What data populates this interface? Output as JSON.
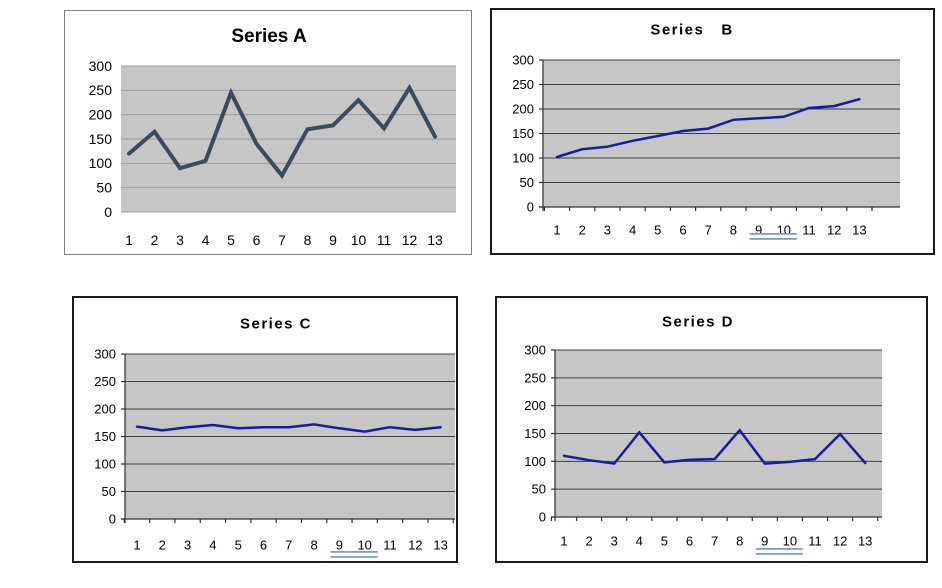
{
  "page": {
    "background": "#ffffff",
    "description": "Four line charts in a 2x2 grid"
  },
  "chart_data": [
    {
      "type": "line",
      "title": "Series A",
      "categories": [
        "1",
        "2",
        "3",
        "4",
        "5",
        "6",
        "7",
        "8",
        "9",
        "10",
        "11",
        "12",
        "13"
      ],
      "values": [
        120,
        165,
        90,
        105,
        245,
        140,
        75,
        170,
        178,
        230,
        172,
        255,
        155
      ],
      "xlabel": "",
      "ylabel": "",
      "ylim": [
        0,
        300
      ],
      "yticks": [
        0,
        50,
        100,
        150,
        200,
        250,
        300
      ],
      "grid": true,
      "legend": false,
      "style": {
        "line_color": "#3d4a5c",
        "line_width": 4,
        "plot_bg": "#c6c6c6",
        "grid_color": "#9e9e9e",
        "axis_color": "#9e9e9e",
        "show_axis_lines": false,
        "underline_9_10": false,
        "underline_color": "#7d9bd9",
        "panel_border": "#7f7f7f"
      }
    },
    {
      "type": "line",
      "title": "Series   B",
      "categories": [
        "1",
        "2",
        "3",
        "4",
        "5",
        "6",
        "7",
        "8",
        "9",
        "10",
        "11",
        "12",
        "13"
      ],
      "values": [
        102,
        118,
        123,
        135,
        145,
        155,
        160,
        178,
        181,
        184,
        202,
        206,
        220
      ],
      "xlabel": "",
      "ylabel": "",
      "ylim": [
        0,
        300
      ],
      "yticks": [
        0,
        50,
        100,
        150,
        200,
        250,
        300
      ],
      "grid": true,
      "legend": false,
      "style": {
        "line_color": "#1b1b9e",
        "line_width": 2.5,
        "plot_bg": "#c6c6c6",
        "grid_color": "#3f3f3f",
        "axis_color": "#303030",
        "show_axis_lines": true,
        "underline_9_10": true,
        "underline_color": "#7d9bd9",
        "panel_border": "#1a1a1a"
      }
    },
    {
      "type": "line",
      "title": "Series C",
      "categories": [
        "1",
        "2",
        "3",
        "4",
        "5",
        "6",
        "7",
        "8",
        "9",
        "10",
        "11",
        "12",
        "13"
      ],
      "values": [
        168,
        161,
        167,
        171,
        165,
        167,
        167,
        172,
        165,
        159,
        167,
        162,
        167
      ],
      "xlabel": "",
      "ylabel": "",
      "ylim": [
        0,
        300
      ],
      "yticks": [
        0,
        50,
        100,
        150,
        200,
        250,
        300
      ],
      "grid": true,
      "legend": false,
      "style": {
        "line_color": "#1b1b9e",
        "line_width": 2.5,
        "plot_bg": "#c6c6c6",
        "grid_color": "#3f3f3f",
        "axis_color": "#303030",
        "show_axis_lines": true,
        "underline_9_10": true,
        "underline_color": "#7d9bd9",
        "panel_border": "#1a1a1a"
      }
    },
    {
      "type": "line",
      "title": "Series D",
      "categories": [
        "1",
        "2",
        "3",
        "4",
        "5",
        "6",
        "7",
        "8",
        "9",
        "10",
        "11",
        "12",
        "13"
      ],
      "values": [
        110,
        102,
        96,
        152,
        98,
        103,
        104,
        156,
        96,
        99,
        104,
        149,
        97
      ],
      "xlabel": "",
      "ylabel": "",
      "ylim": [
        0,
        300
      ],
      "yticks": [
        0,
        50,
        100,
        150,
        200,
        250,
        300
      ],
      "grid": true,
      "legend": false,
      "style": {
        "line_color": "#1b1b9e",
        "line_width": 2.5,
        "plot_bg": "#c6c6c6",
        "grid_color": "#3f3f3f",
        "axis_color": "#303030",
        "show_axis_lines": true,
        "underline_9_10": true,
        "underline_color": "#7d9bd9",
        "panel_border": "#1a1a1a"
      }
    }
  ]
}
